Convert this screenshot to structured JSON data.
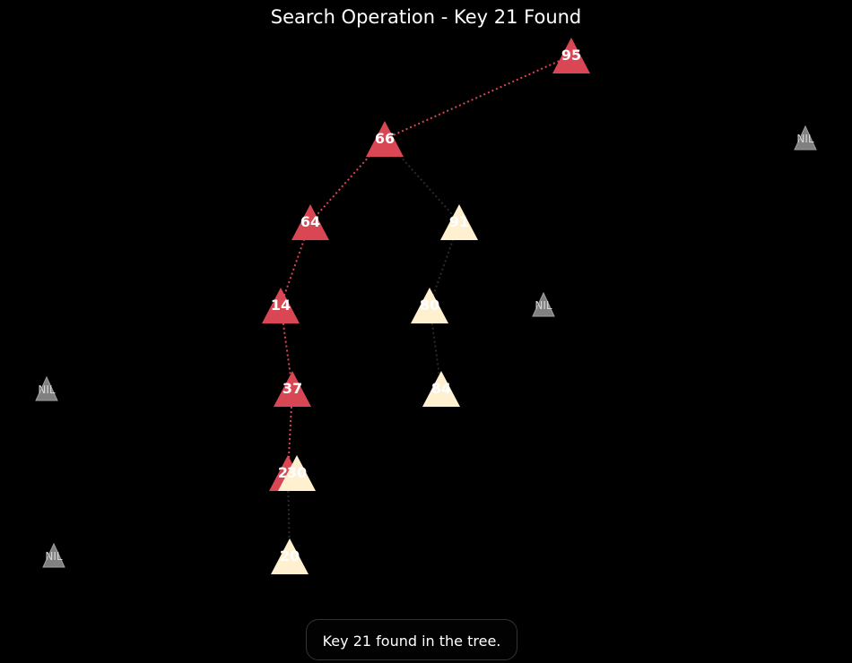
{
  "title": "Search Operation - Key 21 Found",
  "status_message": "Key 21 found in the tree.",
  "colors": {
    "background": "#000000",
    "path_node": "#d94654",
    "node": "#fff1cf",
    "nil_node": "#808080",
    "path_edge": "#d94654",
    "edge": "#2a2a2a"
  },
  "nodes": [
    {
      "id": "n95",
      "label": "95",
      "on_path": true
    },
    {
      "id": "n66",
      "label": "66",
      "on_path": true
    },
    {
      "id": "n64",
      "label": "64",
      "on_path": true
    },
    {
      "id": "n91",
      "label": "91",
      "on_path": false
    },
    {
      "id": "n14",
      "label": "14",
      "on_path": true
    },
    {
      "id": "n80",
      "label": "80",
      "on_path": false
    },
    {
      "id": "n37",
      "label": "37",
      "on_path": true
    },
    {
      "id": "n84",
      "label": "84",
      "on_path": false
    },
    {
      "id": "n21",
      "label": "21",
      "on_path": true
    },
    {
      "id": "n30",
      "label": "30",
      "on_path": false
    },
    {
      "id": "n20",
      "label": "20",
      "on_path": false
    }
  ],
  "nil_nodes": [
    {
      "id": "nil1",
      "label": "NIL"
    },
    {
      "id": "nil2",
      "label": "NIL"
    },
    {
      "id": "nil3",
      "label": "NIL"
    },
    {
      "id": "nil4",
      "label": "NIL"
    }
  ],
  "edges": [
    {
      "from": "n95",
      "to": "n66",
      "on_path": true
    },
    {
      "from": "n66",
      "to": "n64",
      "on_path": true
    },
    {
      "from": "n66",
      "to": "n91",
      "on_path": false
    },
    {
      "from": "n64",
      "to": "n14",
      "on_path": true
    },
    {
      "from": "n91",
      "to": "n80",
      "on_path": false
    },
    {
      "from": "n14",
      "to": "n37",
      "on_path": true
    },
    {
      "from": "n80",
      "to": "n84",
      "on_path": false
    },
    {
      "from": "n37",
      "to": "n21",
      "on_path": true
    },
    {
      "from": "n21",
      "to": "n20",
      "on_path": false
    }
  ]
}
